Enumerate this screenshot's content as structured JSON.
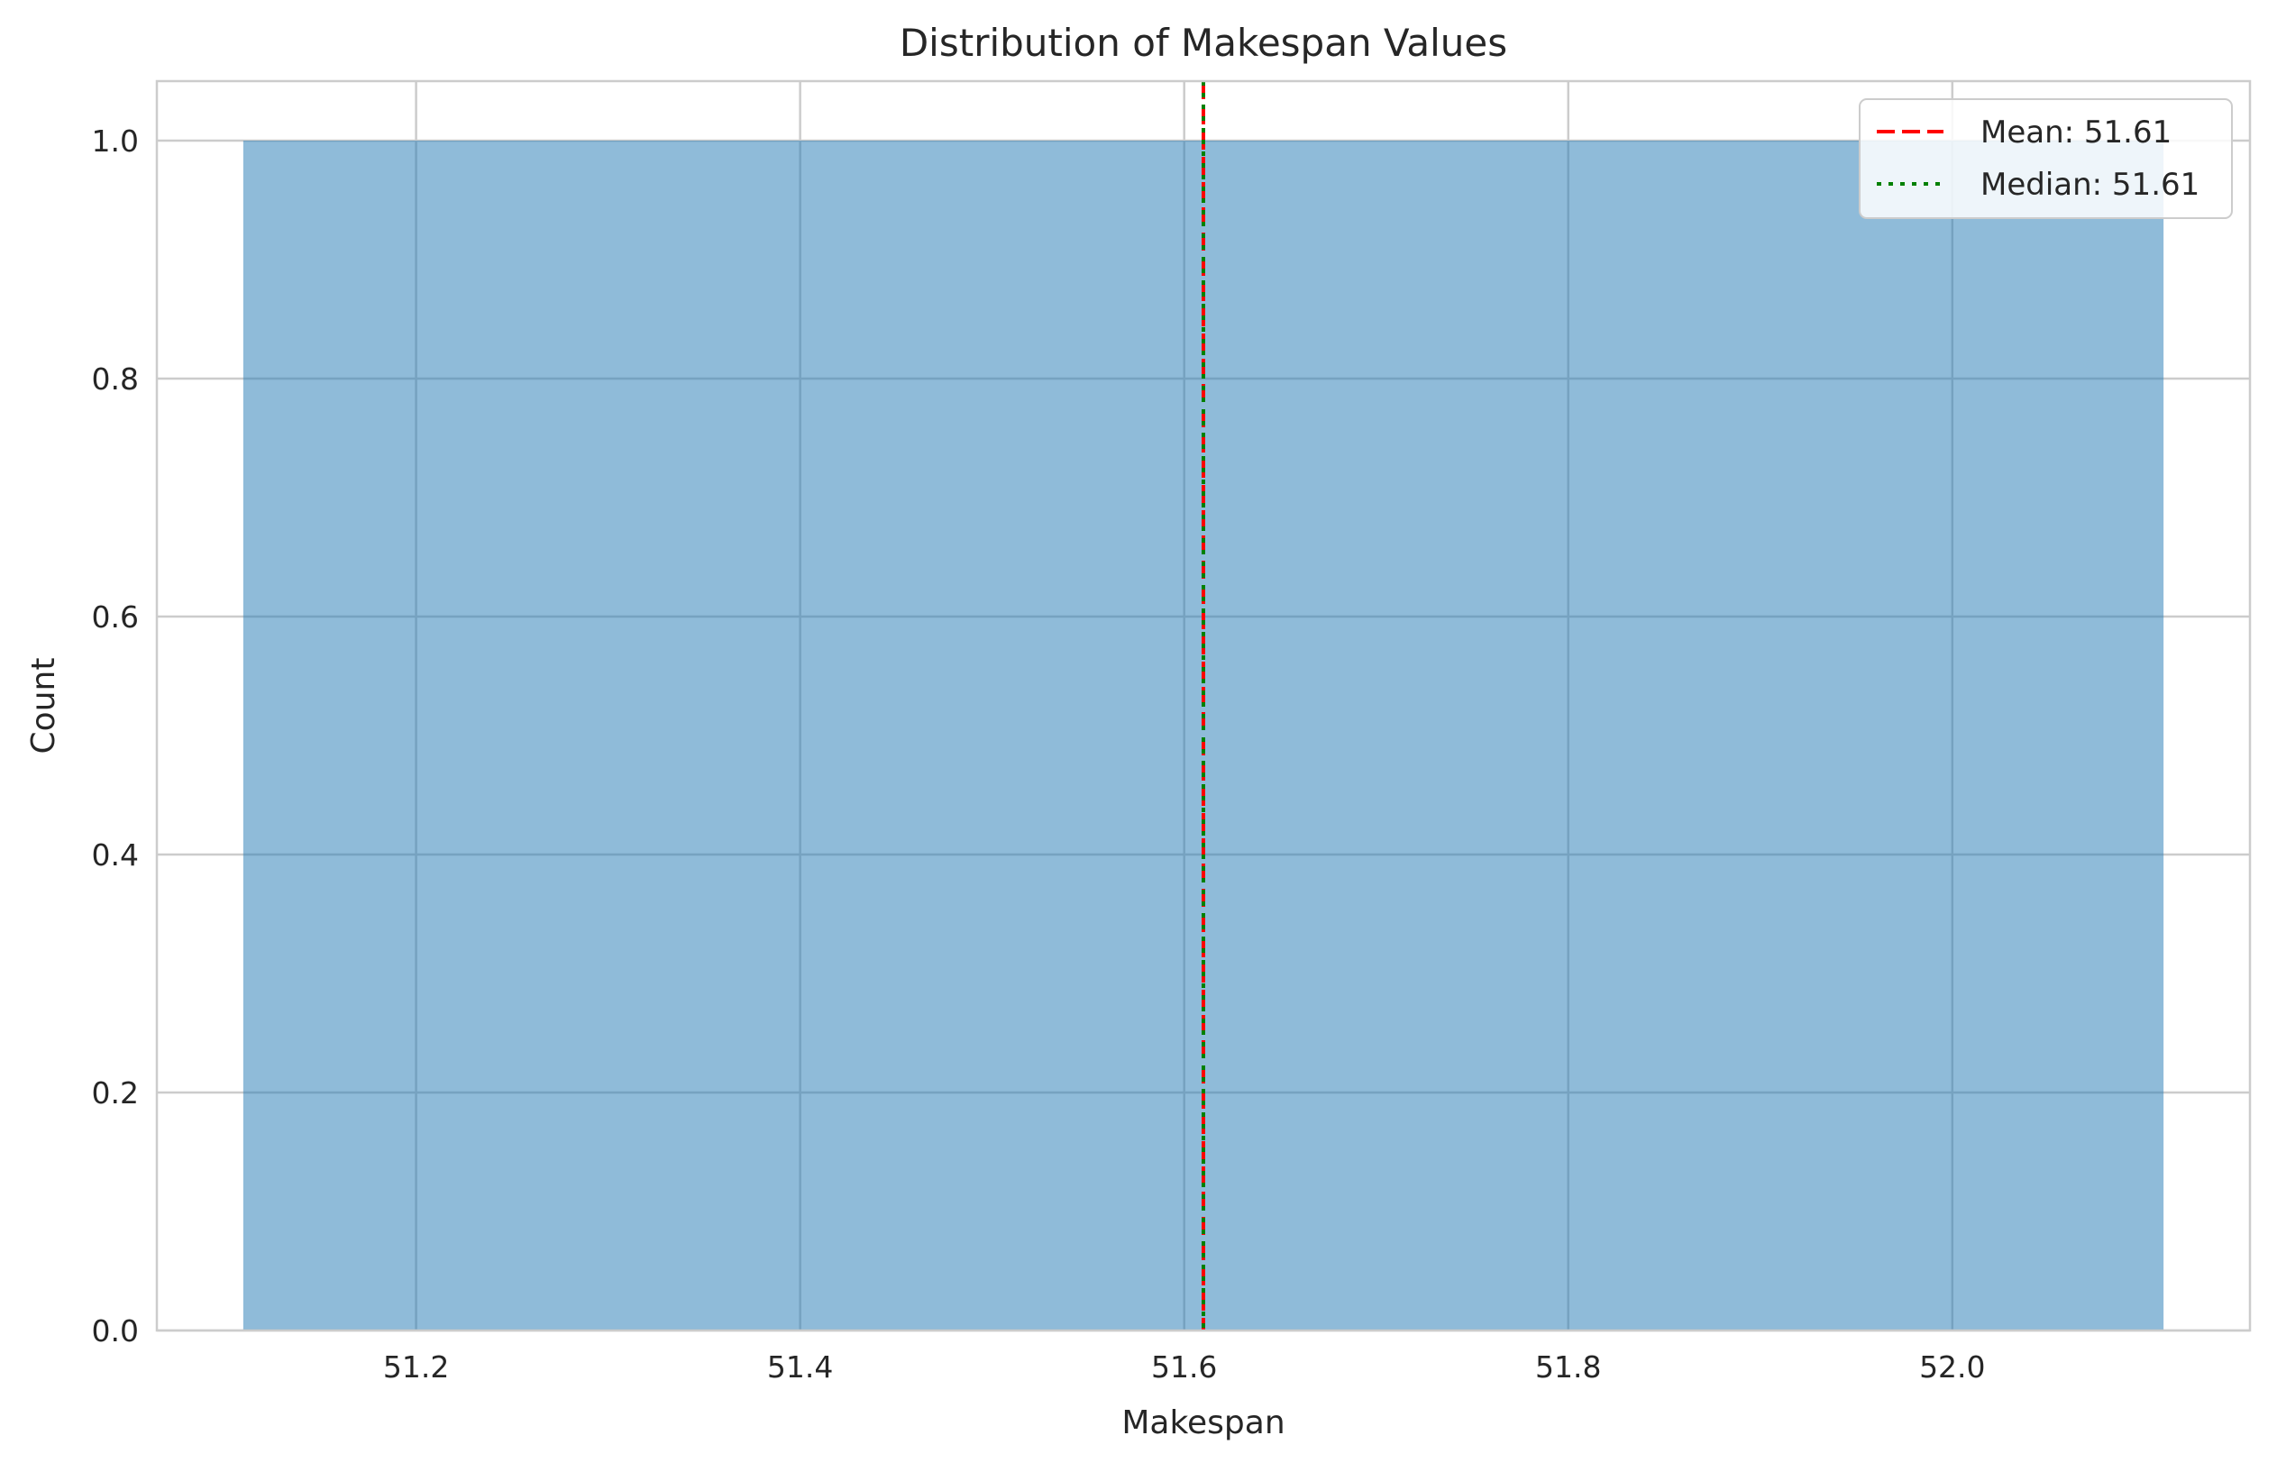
{
  "chart_data": {
    "type": "histogram",
    "title": "Distribution of Makespan Values",
    "xlabel": "Makespan",
    "ylabel": "Count",
    "xlim": [
      51.065,
      52.155
    ],
    "ylim": [
      0,
      1.05
    ],
    "x_ticks": [
      51.2,
      51.4,
      51.6,
      51.8,
      52.0
    ],
    "x_tick_labels": [
      "51.2",
      "51.4",
      "51.6",
      "51.8",
      "52.0"
    ],
    "y_ticks": [
      0.0,
      0.2,
      0.4,
      0.6,
      0.8,
      1.0
    ],
    "y_tick_labels": [
      "0.0",
      "0.2",
      "0.4",
      "0.6",
      "0.8",
      "1.0"
    ],
    "grid": true,
    "bars": [
      {
        "x_start": 51.11,
        "x_end": 52.11,
        "count": 1.0
      }
    ],
    "bar_color": "#8db8d8",
    "reference_lines": [
      {
        "label": "Mean: 51.61",
        "x": 51.61,
        "color": "#ff0000",
        "style": "dashed"
      },
      {
        "label": "Median: 51.61",
        "x": 51.61,
        "color": "#008000",
        "style": "dotted"
      }
    ],
    "legend_placement": "top-right"
  }
}
